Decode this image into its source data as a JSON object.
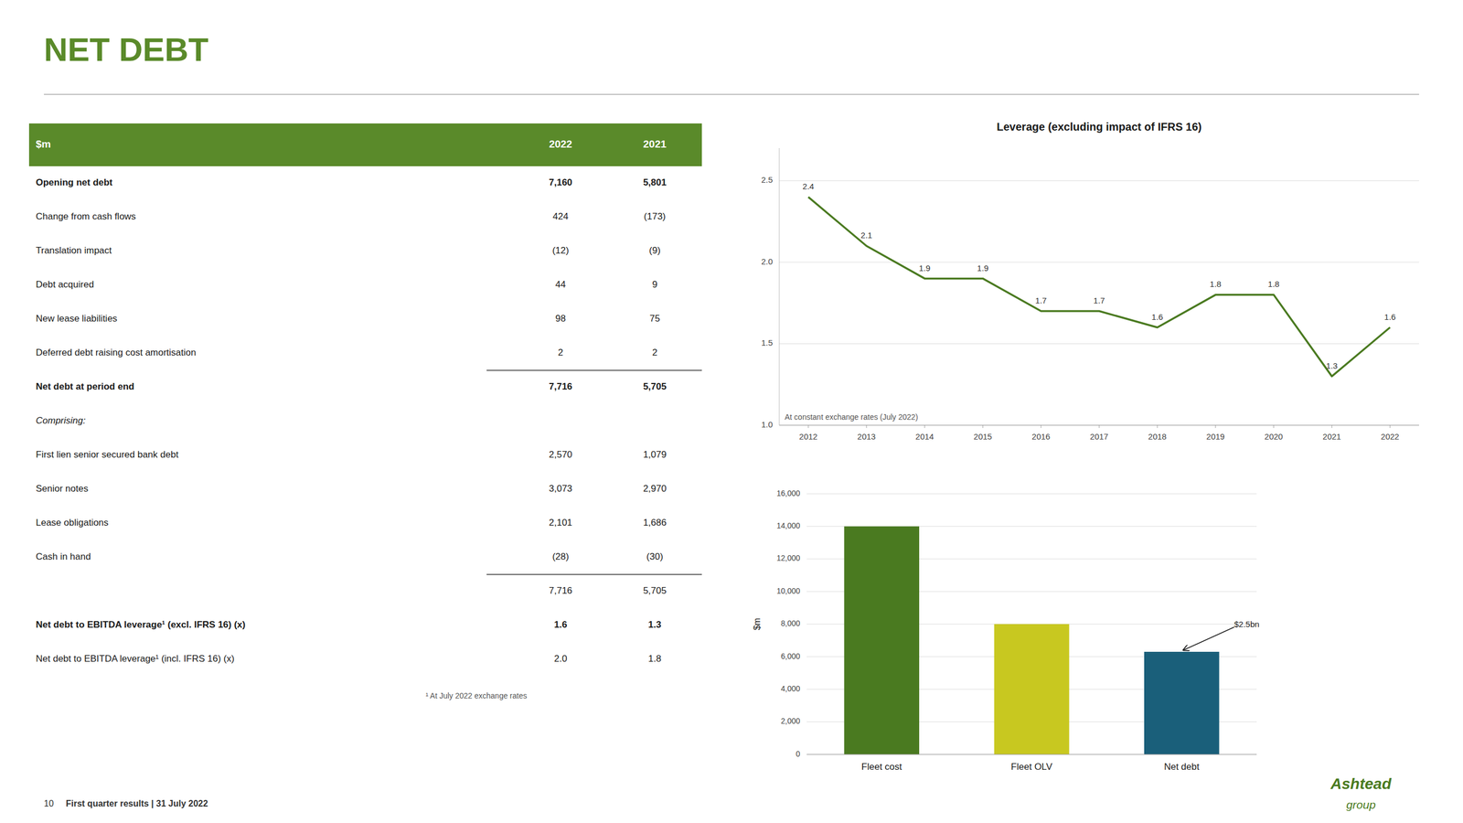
{
  "title": "NET DEBT",
  "footer": [
    "10",
    "First quarter results | 31 July 2022"
  ],
  "logo": [
    "Ashtead",
    "group"
  ],
  "chart_data": [
    {
      "type": "line",
      "title": "Leverage (excluding impact of IFRS 16)",
      "x": [
        2012,
        2013,
        2014,
        2015,
        2016,
        2017,
        2018,
        2019,
        2020,
        2021,
        2022
      ],
      "values": [
        2.4,
        2.1,
        1.9,
        1.9,
        1.7,
        1.7,
        1.6,
        1.8,
        1.8,
        1.3,
        1.6
      ],
      "color": "#4a7a20",
      "xlim": [
        2011.5,
        2022.5
      ],
      "xticks": [
        2012,
        2013,
        2014,
        2015,
        2016,
        2017,
        2018,
        2019,
        2020,
        2021,
        2022
      ],
      "ylim": [
        1.0,
        2.7
      ],
      "yticks": [
        {
          "value": 1.0,
          "label": "1.0"
        },
        {
          "value": 1.5,
          "label": "1.5"
        },
        {
          "value": 2.0,
          "label": "2.0"
        },
        {
          "value": 2.5,
          "label": "2.5"
        }
      ],
      "grid": true,
      "data_labels": true,
      "annotations": [
        "At constant exchange rates (July 2022)"
      ]
    },
    {
      "type": "bar",
      "categories": [
        "Fleet cost",
        "Fleet OLV",
        "Net debt"
      ],
      "values": [
        14000,
        8000,
        6300
      ],
      "colors": [
        "#4a7a20",
        "#c8c820",
        "#1a5f7a"
      ],
      "ylabel": "$m",
      "ylim": [
        0,
        16000
      ],
      "yticks": [
        0,
        {
          "value": 2000,
          "label": "2,000"
        },
        {
          "value": 4000,
          "label": "4,000"
        },
        {
          "value": 6000,
          "label": "6,000"
        },
        {
          "value": 8000,
          "label": "8,000"
        },
        {
          "value": 10000,
          "label": "10,000"
        },
        {
          "value": 12000,
          "label": "12,000"
        },
        {
          "value": 14000,
          "label": "14,000"
        },
        {
          "value": 16000,
          "label": "16,000"
        }
      ],
      "grid": true,
      "annotations": [
        {
          "text": "$2.5bn",
          "category": "Net debt"
        }
      ]
    },
    {
      "type": "table",
      "columns": [
        "$m",
        "2022",
        "2021"
      ],
      "rows": [
        {
          "label": "Opening net debt",
          "values": [
            "7,160",
            "5,801"
          ],
          "bold": true
        },
        {
          "label": "Change from cash flows",
          "values": [
            "424",
            "(173)"
          ]
        },
        {
          "label": "Translation impact",
          "values": [
            "(12)",
            "(9)"
          ]
        },
        {
          "label": "Debt acquired",
          "values": [
            "44",
            "9"
          ]
        },
        {
          "label": "New lease liabilities",
          "values": [
            "98",
            "75"
          ]
        },
        {
          "label": "Deferred debt raising cost amortisation",
          "values": [
            "2",
            "2"
          ]
        },
        {
          "label": "Net debt at period end",
          "values": [
            "7,716",
            "5,705"
          ],
          "bold": true,
          "separator_above": true
        },
        {
          "label": "Comprising:",
          "values": [
            null,
            null
          ],
          "italic": true
        },
        {
          "label": "First lien senior secured bank debt",
          "values": [
            "2,570",
            "1,079"
          ]
        },
        {
          "label": "Senior notes",
          "values": [
            "3,073",
            "2,970"
          ]
        },
        {
          "label": "Lease obligations",
          "values": [
            "2,101",
            "1,686"
          ]
        },
        {
          "label": "Cash in hand",
          "values": [
            "(28)",
            "(30)"
          ]
        },
        {
          "label": null,
          "values": [
            "7,716",
            "5,705"
          ],
          "separator_above": true
        },
        {
          "label": "Net debt to EBITDA leverage¹ (excl. IFRS 16) (x)",
          "values": [
            "1.6",
            "1.3"
          ],
          "bold": true
        },
        {
          "label": "Net debt to EBITDA leverage¹ (incl. IFRS 16) (x)",
          "values": [
            "2.0",
            "1.8"
          ]
        }
      ],
      "footnote": "¹ At July 2022 exchange rates"
    }
  ]
}
